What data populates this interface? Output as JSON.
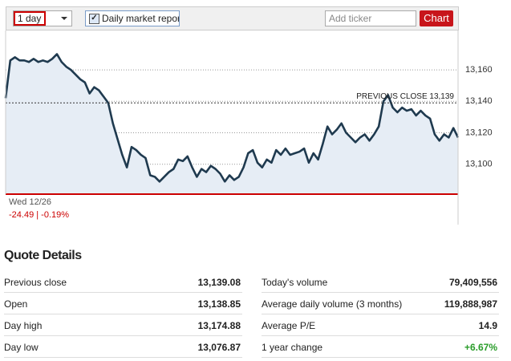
{
  "controls": {
    "period": "1 day",
    "report_checkbox": "Daily market report",
    "ticker_placeholder": "Add ticker",
    "chart_button": "Chart"
  },
  "chart_data": {
    "type": "line",
    "values": [
      13142,
      13166,
      13168,
      13166,
      13166,
      13165,
      13167,
      13165,
      13166,
      13165,
      13167,
      13170,
      13165,
      13162,
      13160,
      13157,
      13154,
      13152,
      13145,
      13149,
      13147,
      13143,
      13139,
      13126,
      13116,
      13106,
      13098,
      13111,
      13109,
      13106,
      13104,
      13093,
      13092,
      13089,
      13092,
      13095,
      13097,
      13103,
      13102,
      13105,
      13098,
      13092,
      13097,
      13095,
      13099,
      13097,
      13094,
      13089,
      13093,
      13090,
      13092,
      13098,
      13107,
      13109,
      13101,
      13098,
      13103,
      13101,
      13109,
      13106,
      13110,
      13106,
      13107,
      13108,
      13110,
      13101,
      13107,
      13103,
      13113,
      13124,
      13119,
      13122,
      13126,
      13120,
      13117,
      13114,
      13117,
      13119,
      13115,
      13119,
      13124,
      13140,
      13144,
      13136,
      13133,
      13136,
      13134,
      13135,
      13131,
      13134,
      13131,
      13129,
      13119,
      13115,
      13119,
      13117,
      13123,
      13117
    ],
    "color": "#1f3a4f",
    "ylim": [
      13081,
      13184
    ],
    "yticks": [
      {
        "value": 13100,
        "label": "13,100"
      },
      {
        "value": 13120,
        "label": "13,120"
      },
      {
        "value": 13140,
        "label": "13,140"
      },
      {
        "value": 13160,
        "label": "13,160"
      }
    ],
    "grid": true,
    "previous_close": {
      "value": 13139,
      "label": "PREVIOUS CLOSE 13,139"
    },
    "date_label": "Wed 12/26",
    "change": "-24.49 | -0.19%"
  },
  "quote_details": {
    "title": "Quote Details",
    "left": [
      [
        "Previous close",
        "13,139.08"
      ],
      [
        "Open",
        "13,138.85"
      ],
      [
        "Day high",
        "13,174.88"
      ],
      [
        "Day low",
        "13,076.87"
      ]
    ],
    "right": [
      [
        "Today's volume",
        "79,409,556"
      ],
      [
        "Average daily volume (3 months)",
        "119,888,987"
      ],
      [
        "Average P/E",
        "14.9"
      ],
      [
        "1 year change",
        "+6.67%"
      ]
    ]
  }
}
